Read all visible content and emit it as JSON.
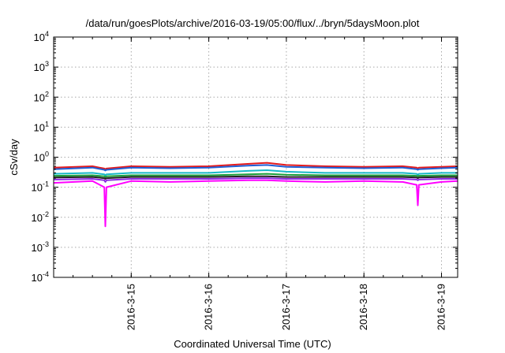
{
  "chart_data": {
    "type": "line",
    "title": "/data/run/goesPlots/archive/2016-03-19/05:00/flux/../bryn/5daysMoon.plot",
    "xlabel": "Coordinated Universal Time (UTC)",
    "ylabel": "cSv/day",
    "yscale": "log",
    "ylim": [
      0.0001,
      10000
    ],
    "y_ticks": [
      {
        "value": 0.0001,
        "base": "10",
        "exp": "-4"
      },
      {
        "value": 0.001,
        "base": "10",
        "exp": "-3"
      },
      {
        "value": 0.01,
        "base": "10",
        "exp": "-2"
      },
      {
        "value": 0.1,
        "base": "10",
        "exp": "-1"
      },
      {
        "value": 1,
        "base": "10",
        "exp": "0"
      },
      {
        "value": 10,
        "base": "10",
        "exp": "1"
      },
      {
        "value": 100,
        "base": "10",
        "exp": "2"
      },
      {
        "value": 1000,
        "base": "10",
        "exp": "3"
      },
      {
        "value": 10000,
        "base": "10",
        "exp": "4"
      }
    ],
    "xlim": [
      "2016-03-14 00:00",
      "2016-03-19 05:00"
    ],
    "x_ticks": [
      "2016-3-15",
      "2016-3-16",
      "2016-3-17",
      "2016-3-18",
      "2016-3-19"
    ],
    "grid": true,
    "x": [
      "2016-03-14 00:00",
      "2016-03-14 12:00",
      "2016-03-14 15:40",
      "2016-03-14 16:00",
      "2016-03-14 16:20",
      "2016-03-15 00:00",
      "2016-03-15 12:00",
      "2016-03-16 00:00",
      "2016-03-16 12:00",
      "2016-03-16 18:00",
      "2016-03-17 00:00",
      "2016-03-17 12:00",
      "2016-03-18 00:00",
      "2016-03-18 12:00",
      "2016-03-18 16:20",
      "2016-03-18 16:40",
      "2016-03-18 17:00",
      "2016-03-19 00:00",
      "2016-03-19 05:00"
    ],
    "series": [
      {
        "color": "#e41a1c",
        "values": [
          0.45,
          0.5,
          0.42,
          0.4,
          0.42,
          0.5,
          0.48,
          0.5,
          0.6,
          0.65,
          0.55,
          0.5,
          0.48,
          0.5,
          0.45,
          0.42,
          0.45,
          0.48,
          0.5
        ]
      },
      {
        "color": "#1f5fd6",
        "values": [
          0.4,
          0.45,
          0.38,
          0.36,
          0.38,
          0.45,
          0.43,
          0.45,
          0.52,
          0.55,
          0.48,
          0.45,
          0.43,
          0.45,
          0.4,
          0.38,
          0.4,
          0.43,
          0.45
        ]
      },
      {
        "color": "#17b8c8",
        "values": [
          0.28,
          0.3,
          0.27,
          0.25,
          0.27,
          0.3,
          0.3,
          0.3,
          0.35,
          0.37,
          0.33,
          0.3,
          0.3,
          0.3,
          0.28,
          0.26,
          0.28,
          0.3,
          0.3
        ]
      },
      {
        "color": "#1a9e3a",
        "values": [
          0.24,
          0.25,
          0.23,
          0.22,
          0.23,
          0.25,
          0.25,
          0.25,
          0.27,
          0.28,
          0.26,
          0.25,
          0.25,
          0.25,
          0.24,
          0.23,
          0.24,
          0.25,
          0.25
        ]
      },
      {
        "color": "#222222",
        "values": [
          0.21,
          0.22,
          0.2,
          0.19,
          0.2,
          0.22,
          0.22,
          0.22,
          0.23,
          0.23,
          0.22,
          0.22,
          0.22,
          0.22,
          0.21,
          0.2,
          0.21,
          0.22,
          0.22
        ]
      },
      {
        "color": "#8a2be2",
        "values": [
          0.18,
          0.19,
          0.17,
          0.15,
          0.17,
          0.19,
          0.19,
          0.19,
          0.2,
          0.2,
          0.19,
          0.19,
          0.19,
          0.19,
          0.18,
          0.17,
          0.18,
          0.19,
          0.19
        ]
      },
      {
        "color": "#ff00ff",
        "values": [
          0.14,
          0.16,
          0.1,
          0.005,
          0.1,
          0.16,
          0.15,
          0.16,
          0.17,
          0.17,
          0.16,
          0.15,
          0.16,
          0.15,
          0.12,
          0.025,
          0.12,
          0.15,
          0.16
        ]
      }
    ]
  }
}
